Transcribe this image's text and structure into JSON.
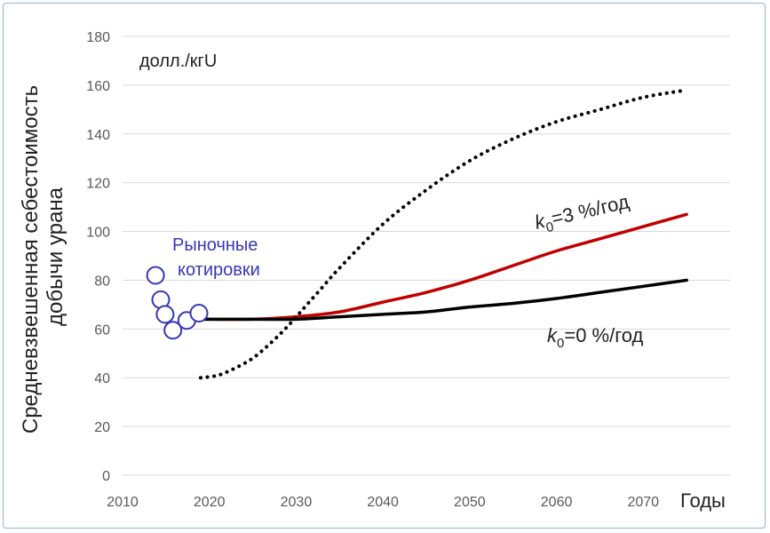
{
  "chart_data": {
    "type": "line",
    "title": "",
    "ylabel_line1": "Средневзвешенная себестоимость",
    "ylabel_line2": "добычи урана",
    "unit_label": "долл./кгU",
    "xlabel": "Годы",
    "xlim": [
      2010,
      2080
    ],
    "ylim": [
      0,
      180
    ],
    "x_ticks": [
      2010,
      2020,
      2030,
      2040,
      2050,
      2060,
      2070
    ],
    "y_ticks": [
      0,
      20,
      40,
      60,
      80,
      100,
      120,
      140,
      160,
      180
    ],
    "grid": "horizontal",
    "series": [
      {
        "label_prefix": "k",
        "label_sub": "0",
        "label_suffix": "=3 %/год",
        "color": "#c00000",
        "style": "solid",
        "x": [
          2019,
          2025,
          2030,
          2035,
          2040,
          2045,
          2050,
          2055,
          2060,
          2065,
          2070,
          2075
        ],
        "y": [
          64,
          64,
          65,
          67,
          71,
          75,
          80,
          86,
          92,
          97,
          102,
          107
        ]
      },
      {
        "label_prefix": "k",
        "label_sub": "0",
        "label_suffix": "=0 %/год",
        "color": "#000000",
        "style": "solid",
        "x": [
          2019,
          2025,
          2030,
          2035,
          2040,
          2045,
          2050,
          2055,
          2060,
          2065,
          2070,
          2075
        ],
        "y": [
          64,
          64,
          64,
          65,
          66,
          67,
          69,
          70.5,
          72.5,
          75,
          77.5,
          80
        ]
      },
      {
        "color": "#000000",
        "style": "dotted",
        "x": [
          2019,
          2021,
          2023,
          2025,
          2027,
          2029,
          2031,
          2033,
          2035,
          2040,
          2045,
          2050,
          2055,
          2060,
          2065,
          2070,
          2075
        ],
        "y": [
          40,
          41,
          44,
          48,
          54,
          61,
          69,
          77,
          85,
          103,
          117,
          129,
          138,
          145,
          150,
          155,
          158
        ]
      }
    ],
    "market_quotes": {
      "label_line1": "Рыночные",
      "label_line2": "котировки",
      "color": "#3737b5",
      "x": [
        2013.8,
        2014.4,
        2014.9,
        2015.8,
        2017.4,
        2018.8
      ],
      "y": [
        82,
        72,
        66,
        59.5,
        63.5,
        66.5
      ]
    }
  }
}
